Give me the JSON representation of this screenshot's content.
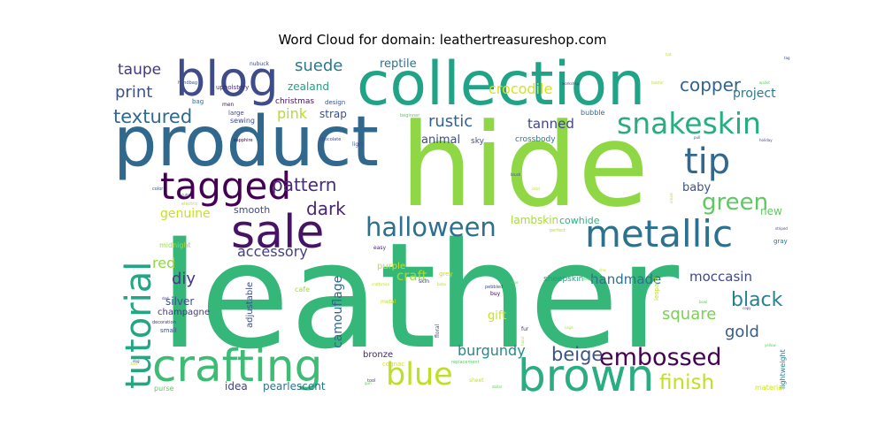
{
  "chart_data": {
    "type": "wordcloud",
    "title": "Word Cloud for domain: leathertreasureshop.com",
    "colormap": "viridis",
    "background": "#ffffff",
    "words": [
      {
        "text": "leather",
        "weight": 1.0,
        "color": "#35b779"
      },
      {
        "text": "hide",
        "weight": 0.95,
        "color": "#8fd744"
      },
      {
        "text": "product",
        "weight": 0.72,
        "color": "#31688e"
      },
      {
        "text": "collection",
        "weight": 0.66,
        "color": "#20a386"
      },
      {
        "text": "crafting",
        "weight": 0.5,
        "color": "#3cbc74"
      },
      {
        "text": "brown",
        "weight": 0.5,
        "color": "#28ae80"
      },
      {
        "text": "sale",
        "weight": 0.48,
        "color": "#471365"
      },
      {
        "text": "blog",
        "weight": 0.47,
        "color": "#3e4c8a"
      },
      {
        "text": "tagged",
        "weight": 0.4,
        "color": "#440154"
      },
      {
        "text": "metallic",
        "weight": 0.38,
        "color": "#2c728e"
      },
      {
        "text": "tutorial",
        "weight": 0.38,
        "color": "#22a785"
      },
      {
        "text": "snakeskin",
        "weight": 0.33,
        "color": "#27ad81"
      },
      {
        "text": "tip",
        "weight": 0.32,
        "color": "#31688e"
      },
      {
        "text": "blue",
        "weight": 0.3,
        "color": "#bddf26"
      },
      {
        "text": "halloween",
        "weight": 0.26,
        "color": "#2d708e"
      },
      {
        "text": "embossed",
        "weight": 0.23,
        "color": "#440154"
      },
      {
        "text": "green",
        "weight": 0.2,
        "color": "#5ec962"
      },
      {
        "text": "finish",
        "weight": 0.19,
        "color": "#c2df23"
      },
      {
        "text": "black",
        "weight": 0.18,
        "color": "#26828e"
      },
      {
        "text": "beige",
        "weight": 0.18,
        "color": "#3b528b"
      },
      {
        "text": "textured",
        "weight": 0.17,
        "color": "#31688e"
      },
      {
        "text": "pattern",
        "weight": 0.17,
        "color": "#472c7a"
      },
      {
        "text": "copper",
        "weight": 0.17,
        "color": "#33638d"
      },
      {
        "text": "dark",
        "weight": 0.16,
        "color": "#482475"
      },
      {
        "text": "square",
        "weight": 0.16,
        "color": "#7ad151"
      },
      {
        "text": "gold",
        "weight": 0.16,
        "color": "#365d8d"
      },
      {
        "text": "suede",
        "weight": 0.15,
        "color": "#2a778e"
      },
      {
        "text": "print",
        "weight": 0.15,
        "color": "#3b528b"
      },
      {
        "text": "taupe",
        "weight": 0.14,
        "color": "#453781"
      },
      {
        "text": "pink",
        "weight": 0.14,
        "color": "#b5de2b"
      },
      {
        "text": "rustic",
        "weight": 0.14,
        "color": "#355f8d"
      },
      {
        "text": "crocodile",
        "weight": 0.14,
        "color": "#d8e219"
      },
      {
        "text": "burgundy",
        "weight": 0.14,
        "color": "#238a8d"
      },
      {
        "text": "red",
        "weight": 0.14,
        "color": "#8fd744"
      },
      {
        "text": "diy",
        "weight": 0.14,
        "color": "#443983"
      },
      {
        "text": "accessory",
        "weight": 0.13,
        "color": "#433e85"
      },
      {
        "text": "craft",
        "weight": 0.13,
        "color": "#9fda3a"
      },
      {
        "text": "moccasin",
        "weight": 0.13,
        "color": "#3e4989"
      },
      {
        "text": "handmade",
        "weight": 0.13,
        "color": "#2d708e"
      },
      {
        "text": "genuine",
        "weight": 0.12,
        "color": "#c8e020"
      },
      {
        "text": "tanned",
        "weight": 0.12,
        "color": "#3f4788"
      },
      {
        "text": "project",
        "weight": 0.11,
        "color": "#2a788e"
      },
      {
        "text": "camouflage",
        "weight": 0.11,
        "color": "#31688e"
      },
      {
        "text": "baby",
        "weight": 0.11,
        "color": "#3b528b"
      },
      {
        "text": "reptile",
        "weight": 0.11,
        "color": "#2c728e"
      },
      {
        "text": "zealand",
        "weight": 0.1,
        "color": "#1fa187"
      },
      {
        "text": "gift",
        "weight": 0.1,
        "color": "#c8e020"
      },
      {
        "text": "strap",
        "weight": 0.1,
        "color": "#3b528b"
      },
      {
        "text": "animal",
        "weight": 0.1,
        "color": "#3e4c8a"
      },
      {
        "text": "lambskin",
        "weight": 0.1,
        "color": "#a8db34"
      },
      {
        "text": "cowhide",
        "weight": 0.09,
        "color": "#2fb47c"
      },
      {
        "text": "new",
        "weight": 0.09,
        "color": "#5ec962"
      },
      {
        "text": "idea",
        "weight": 0.09,
        "color": "#424086"
      },
      {
        "text": "silver",
        "weight": 0.09,
        "color": "#3b528b"
      },
      {
        "text": "pearlescent",
        "weight": 0.09,
        "color": "#2c728e"
      },
      {
        "text": "smooth",
        "weight": 0.08,
        "color": "#3e4989"
      },
      {
        "text": "bronze",
        "weight": 0.08,
        "color": "#482374"
      },
      {
        "text": "champagne",
        "weight": 0.08,
        "color": "#443983"
      },
      {
        "text": "christmas",
        "weight": 0.07,
        "color": "#471365"
      },
      {
        "text": "crossbody",
        "weight": 0.07,
        "color": "#2a788e"
      },
      {
        "text": "sky",
        "weight": 0.07,
        "color": "#3b528b"
      },
      {
        "text": "adjustable",
        "weight": 0.07,
        "color": "#3e4c8a"
      },
      {
        "text": "purple",
        "weight": 0.07,
        "color": "#cde11d"
      },
      {
        "text": "sheepskin",
        "weight": 0.07,
        "color": "#1f9e89"
      },
      {
        "text": "bubble",
        "weight": 0.06,
        "color": "#306a8e"
      },
      {
        "text": "sewing",
        "weight": 0.06,
        "color": "#3e4989"
      },
      {
        "text": "midnight",
        "weight": 0.06,
        "color": "#9fda3a"
      },
      {
        "text": "purse",
        "weight": 0.06,
        "color": "#5ec962"
      },
      {
        "text": "lightweight",
        "weight": 0.06,
        "color": "#287c8e"
      },
      {
        "text": "material",
        "weight": 0.06,
        "color": "#cde11d"
      },
      {
        "text": "cafe",
        "weight": 0.05,
        "color": "#a0da39"
      },
      {
        "text": "upholstery",
        "weight": 0.05,
        "color": "#482878"
      },
      {
        "text": "design",
        "weight": 0.05,
        "color": "#3b528b"
      },
      {
        "text": "bag",
        "weight": 0.05,
        "color": "#31688e"
      },
      {
        "text": "large",
        "weight": 0.05,
        "color": "#3e4989"
      },
      {
        "text": "men",
        "weight": 0.05,
        "color": "#470d60"
      },
      {
        "text": "small",
        "weight": 0.05,
        "color": "#3e4c8a"
      },
      {
        "text": "leopard",
        "weight": 0.05,
        "color": "#bddf26"
      },
      {
        "text": "grey",
        "weight": 0.05,
        "color": "#d0e11c"
      },
      {
        "text": "cognac",
        "weight": 0.05,
        "color": "#d8e219"
      },
      {
        "text": "gray",
        "weight": 0.05,
        "color": "#2c728e"
      },
      {
        "text": "nubuck",
        "weight": 0.04,
        "color": "#3e4989"
      },
      {
        "text": "handbag",
        "weight": 0.04,
        "color": "#3b528b"
      },
      {
        "text": "sheet",
        "weight": 0.04,
        "color": "#c2df23"
      },
      {
        "text": "metal",
        "weight": 0.04,
        "color": "#c2df23"
      },
      {
        "text": "skin",
        "weight": 0.04,
        "color": "#424086"
      },
      {
        "text": "buy",
        "weight": 0.04,
        "color": "#440154"
      },
      {
        "text": "easy",
        "weight": 0.04,
        "color": "#482475"
      },
      {
        "text": "light",
        "weight": 0.04,
        "color": "#3b528b"
      },
      {
        "text": "fur",
        "weight": 0.04,
        "color": "#453781"
      },
      {
        "text": "floral",
        "weight": 0.04,
        "color": "#3b528b"
      },
      {
        "text": "color",
        "weight": 0.03,
        "color": "#3b528b"
      },
      {
        "text": "decoration",
        "weight": 0.03,
        "color": "#453781"
      },
      {
        "text": "pebbled",
        "weight": 0.03,
        "color": "#3e4989"
      },
      {
        "text": "replacement",
        "weight": 0.03,
        "color": "#5ec962"
      },
      {
        "text": "tool",
        "weight": 0.03,
        "color": "#3e4989"
      },
      {
        "text": "sapphire",
        "weight": 0.03,
        "color": "#440154"
      },
      {
        "text": "chocolate",
        "weight": 0.03,
        "color": "#3e4989"
      },
      {
        "text": "electric",
        "weight": 0.03,
        "color": "#b5de2b"
      },
      {
        "text": "perfect",
        "weight": 0.03,
        "color": "#b5de2b"
      },
      {
        "text": "beginner",
        "weight": 0.03,
        "color": "#5ec962"
      },
      {
        "text": "copy",
        "weight": 0.03,
        "color": "#3e4989"
      },
      {
        "text": "yellow",
        "weight": 0.03,
        "color": "#5ec962"
      },
      {
        "text": "striped",
        "weight": 0.03,
        "color": "#3e4989"
      },
      {
        "text": "pull",
        "weight": 0.03,
        "color": "#3e4989"
      },
      {
        "text": "dad",
        "weight": 0.03,
        "color": "#453781"
      },
      {
        "text": "chic",
        "weight": 0.03,
        "color": "#b5de2b"
      },
      {
        "text": "boho",
        "weight": 0.03,
        "color": "#b5de2b"
      },
      {
        "text": "cord",
        "weight": 0.03,
        "color": "#b5de2b"
      },
      {
        "text": "cream",
        "weight": 0.03,
        "color": "#b5de2b"
      },
      {
        "text": "gun",
        "weight": 0.03,
        "color": "#5ec962"
      },
      {
        "text": "sage",
        "weight": 0.03,
        "color": "#b5de2b"
      },
      {
        "text": "bowl",
        "weight": 0.03,
        "color": "#5ec962"
      },
      {
        "text": "hand",
        "weight": 0.03,
        "color": "#b5de2b"
      },
      {
        "text": "dog",
        "weight": 0.03,
        "color": "#3e4989"
      },
      {
        "text": "decor",
        "weight": 0.03,
        "color": "#5ec962"
      },
      {
        "text": "dollar",
        "weight": 0.03,
        "color": "#5ec962"
      },
      {
        "text": "holiday",
        "weight": 0.03,
        "color": "#3e4989"
      },
      {
        "text": "brush",
        "weight": 0.03,
        "color": "#3e4989"
      },
      {
        "text": "workshop",
        "weight": 0.03,
        "color": "#3e4989"
      },
      {
        "text": "craftsman",
        "weight": 0.03,
        "color": "#b5de2b"
      },
      {
        "text": "hat",
        "weight": 0.03,
        "color": "#b5de2b"
      },
      {
        "text": "cute",
        "weight": 0.03,
        "color": "#3e4989"
      },
      {
        "text": "wallet",
        "weight": 0.03,
        "color": "#5ec962"
      },
      {
        "text": "holster",
        "weight": 0.03,
        "color": "#b5de2b"
      },
      {
        "text": "tag",
        "weight": 0.03,
        "color": "#3e4989"
      },
      {
        "text": "rose",
        "weight": 0.03,
        "color": "#5ec962"
      },
      {
        "text": "belt",
        "weight": 0.03,
        "color": "#b5de2b"
      }
    ]
  }
}
